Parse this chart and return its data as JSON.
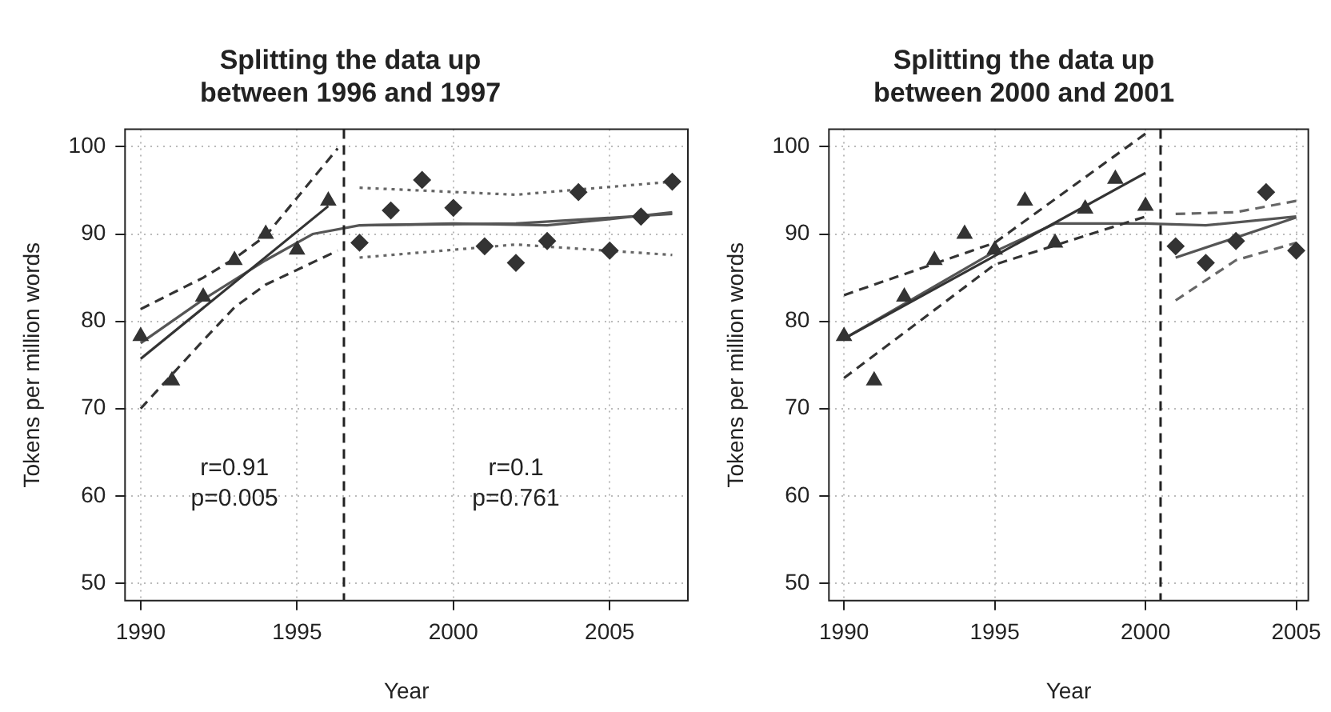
{
  "chart_data": [
    {
      "type": "scatter",
      "title": "Splitting the data up\nbetween 1996 and 1997",
      "xlabel": "Year",
      "ylabel": "Tokens per million words",
      "xlim": [
        1989.5,
        2007.5
      ],
      "ylim": [
        48,
        102
      ],
      "xticks": [
        1990,
        1995,
        2000,
        2005
      ],
      "yticks": [
        50,
        60,
        70,
        80,
        90,
        100
      ],
      "grid": true,
      "legend": false,
      "annotations": [
        "r=0.91\np=0.005",
        "r=0.1\np=0.761"
      ],
      "ref_lines": [
        {
          "axis": "x",
          "value": 1996.5,
          "line_style": "dashed",
          "color": "#222222"
        }
      ],
      "series": [
        {
          "type": "scatter",
          "marker": "triangle",
          "color": "#333333",
          "x": [
            1990,
            1991,
            1992,
            1993,
            1994,
            1995,
            1996
          ],
          "values": [
            78.3,
            73.2,
            82.8,
            87.0,
            90.0,
            88.2,
            93.8
          ]
        },
        {
          "type": "scatter",
          "marker": "diamond",
          "color": "#333333",
          "x": [
            1997,
            1998,
            1999,
            2000,
            2001,
            2002,
            2003,
            2004,
            2005,
            2006,
            2007
          ],
          "values": [
            89.0,
            92.7,
            96.2,
            93.0,
            88.6,
            86.7,
            89.2,
            94.8,
            88.1,
            92.0,
            96.0
          ]
        },
        {
          "type": "line",
          "line_style": "solid",
          "color": "#333333",
          "x": [
            1990,
            1996
          ],
          "values": [
            75.7,
            93.2
          ]
        },
        {
          "type": "line",
          "line_style": "dashed",
          "color": "#333333",
          "x": [
            1990,
            1992,
            1993,
            1994,
            1996.3
          ],
          "values": [
            81.4,
            85.0,
            87.2,
            89.8,
            99.8
          ]
        },
        {
          "type": "line",
          "line_style": "dashed",
          "color": "#333333",
          "x": [
            1990,
            1992,
            1993,
            1994,
            1996.3
          ],
          "values": [
            70.0,
            77.8,
            81.6,
            84.2,
            88.1
          ]
        },
        {
          "type": "line",
          "line_style": "solid",
          "color": "#555555",
          "x": [
            1990,
            1992,
            1994,
            1995.5,
            1997,
            2000,
            2003,
            2005,
            2007
          ],
          "values": [
            77.5,
            82.5,
            87.0,
            90.0,
            91.0,
            91.2,
            91.0,
            91.7,
            92.5
          ]
        },
        {
          "type": "line",
          "line_style": "solid",
          "color": "#555555",
          "x": [
            1997,
            2002,
            2007
          ],
          "values": [
            91.0,
            91.2,
            92.3
          ]
        },
        {
          "type": "line",
          "line_style": "dotted",
          "color": "#666666",
          "x": [
            1997,
            2002,
            2007
          ],
          "values": [
            95.3,
            94.5,
            96.0
          ]
        },
        {
          "type": "line",
          "line_style": "dotted",
          "color": "#666666",
          "x": [
            1997,
            2002,
            2007
          ],
          "values": [
            87.3,
            88.8,
            87.6
          ]
        }
      ]
    },
    {
      "type": "scatter",
      "title": "Splitting the data up\nbetween 2000 and 2001",
      "xlabel": "Year",
      "ylabel": "Tokens per million words",
      "xlim": [
        1989.5,
        2005.4
      ],
      "ylim": [
        48,
        102
      ],
      "xticks": [
        1990,
        1995,
        2000,
        2005
      ],
      "yticks": [
        50,
        60,
        70,
        80,
        90,
        100
      ],
      "grid": true,
      "legend": false,
      "ref_lines": [
        {
          "axis": "x",
          "value": 2000.5,
          "line_style": "dashed",
          "color": "#222222"
        }
      ],
      "series": [
        {
          "type": "scatter",
          "marker": "triangle",
          "color": "#333333",
          "x": [
            1990,
            1991,
            1992,
            1993,
            1994,
            1995,
            1996,
            1997,
            1998,
            1999,
            2000
          ],
          "values": [
            78.3,
            73.2,
            82.8,
            87.0,
            90.0,
            88.2,
            93.8,
            89.0,
            92.9,
            96.3,
            93.2
          ]
        },
        {
          "type": "scatter",
          "marker": "diamond",
          "color": "#333333",
          "x": [
            2001,
            2002,
            2003,
            2004,
            2005
          ],
          "values": [
            88.6,
            86.7,
            89.2,
            94.8,
            88.1
          ]
        },
        {
          "type": "line",
          "line_style": "solid",
          "color": "#333333",
          "x": [
            1990,
            2000
          ],
          "values": [
            78.0,
            97.0
          ]
        },
        {
          "type": "line",
          "line_style": "dashed",
          "color": "#333333",
          "x": [
            1990,
            1995,
            2000
          ],
          "values": [
            83.0,
            89.0,
            101.5
          ]
        },
        {
          "type": "line",
          "line_style": "dashed",
          "color": "#333333",
          "x": [
            1990,
            1995,
            2000
          ],
          "values": [
            73.5,
            86.5,
            92.0
          ]
        },
        {
          "type": "line",
          "line_style": "solid",
          "color": "#555555",
          "x": [
            1990,
            1995,
            1997,
            2000,
            2002,
            2005
          ],
          "values": [
            78.0,
            88.0,
            91.2,
            91.2,
            91.0,
            92.0
          ]
        },
        {
          "type": "line",
          "line_style": "solid",
          "color": "#555555",
          "x": [
            2001,
            2005
          ],
          "values": [
            87.3,
            91.9
          ]
        },
        {
          "type": "line",
          "line_style": "dashed",
          "color": "#666666",
          "x": [
            2001,
            2003,
            2005
          ],
          "values": [
            92.3,
            92.5,
            93.8
          ]
        },
        {
          "type": "line",
          "line_style": "dashed",
          "color": "#666666",
          "x": [
            2001,
            2003,
            2005
          ],
          "values": [
            82.4,
            87.0,
            89.0
          ]
        }
      ]
    }
  ]
}
